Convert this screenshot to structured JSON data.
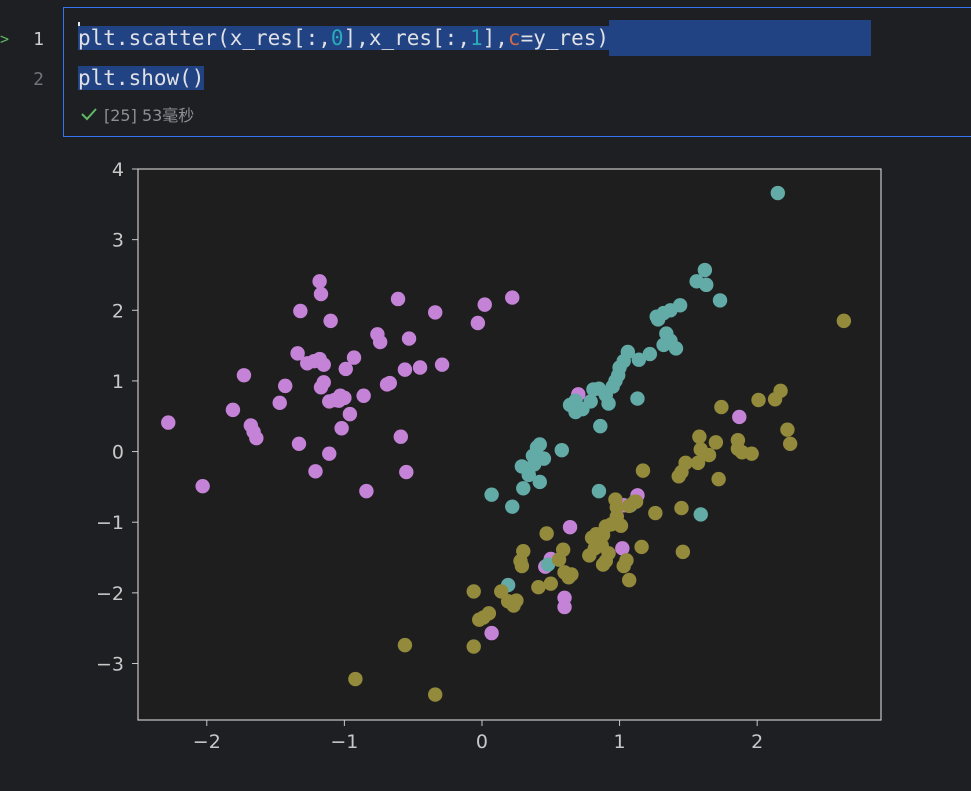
{
  "editor": {
    "line_numbers": [
      "1",
      "2"
    ],
    "line1": {
      "p1": "plt.scatter(x_res[:,",
      "n1": "0",
      "p2": "],x_res[:,",
      "n2": "1",
      "p3": "],",
      "kw": "c",
      "p4": "=y_res)"
    },
    "line2": "plt.show()",
    "status": {
      "count": "[25]",
      "duration": "53毫秒"
    }
  },
  "colors": {
    "purple": "#c583d8",
    "teal": "#62aba7",
    "olive": "#948a3c",
    "axis": "#c8c8c8",
    "plot_bg": "#1e1e1e"
  },
  "chart_data": {
    "type": "scatter",
    "xlim": [
      -2.5,
      2.9
    ],
    "ylim": [
      -3.8,
      4.0
    ],
    "xticks": [
      "−2",
      "−1",
      "0",
      "1",
      "2"
    ],
    "yticks": [
      "−3",
      "−2",
      "−1",
      "0",
      "1",
      "2",
      "3",
      "4"
    ],
    "xtick_values": [
      -2,
      -1,
      0,
      1,
      2
    ],
    "ytick_values": [
      -3,
      -2,
      -1,
      0,
      1,
      2,
      3,
      4
    ],
    "grid": false,
    "series": [
      {
        "color": "#c583d8",
        "points": [
          [
            -2.28,
            0.41
          ],
          [
            -2.03,
            -0.49
          ],
          [
            -1.81,
            0.59
          ],
          [
            -1.73,
            1.08
          ],
          [
            -1.68,
            0.37
          ],
          [
            -1.66,
            0.28
          ],
          [
            -1.64,
            0.19
          ],
          [
            -1.47,
            0.69
          ],
          [
            -1.43,
            0.93
          ],
          [
            -1.34,
            1.39
          ],
          [
            -1.33,
            0.11
          ],
          [
            -1.32,
            1.99
          ],
          [
            -1.27,
            1.25
          ],
          [
            -1.22,
            1.28
          ],
          [
            -1.21,
            -0.28
          ],
          [
            -1.18,
            2.41
          ],
          [
            -1.17,
            2.23
          ],
          [
            -1.18,
            1.31
          ],
          [
            -1.17,
            0.91
          ],
          [
            -1.15,
            0.98
          ],
          [
            -1.15,
            1.23
          ],
          [
            -1.11,
            0.71
          ],
          [
            -1.11,
            -0.03
          ],
          [
            -1.1,
            1.85
          ],
          [
            -1.07,
            0.73
          ],
          [
            -1.04,
            0.72
          ],
          [
            -1.03,
            0.79
          ],
          [
            -1.02,
            0.33
          ],
          [
            -1.0,
            0.76
          ],
          [
            -0.99,
            1.17
          ],
          [
            -0.96,
            0.53
          ],
          [
            -0.93,
            1.33
          ],
          [
            -0.86,
            0.79
          ],
          [
            -0.84,
            -0.56
          ],
          [
            -0.76,
            1.66
          ],
          [
            -0.74,
            1.55
          ],
          [
            -0.69,
            0.95
          ],
          [
            -0.67,
            0.97
          ],
          [
            -0.61,
            2.16
          ],
          [
            -0.59,
            0.21
          ],
          [
            -0.56,
            1.16
          ],
          [
            -0.55,
            -0.29
          ],
          [
            -0.53,
            1.6
          ],
          [
            -0.45,
            1.19
          ],
          [
            -0.34,
            1.97
          ],
          [
            -0.29,
            1.23
          ],
          [
            -0.03,
            1.82
          ],
          [
            0.02,
            2.08
          ],
          [
            0.22,
            2.18
          ],
          [
            0.7,
            0.81
          ],
          [
            1.03,
            -0.76
          ],
          [
            1.13,
            -0.62
          ],
          [
            1.02,
            -1.37
          ],
          [
            1.87,
            0.49
          ],
          [
            0.64,
            -1.07
          ],
          [
            0.5,
            -1.52
          ],
          [
            0.46,
            -1.63
          ],
          [
            0.6,
            -2.07
          ],
          [
            0.6,
            -2.2
          ],
          [
            0.07,
            -2.57
          ]
        ]
      },
      {
        "color": "#62aba7",
        "points": [
          [
            2.15,
            3.66
          ],
          [
            1.62,
            2.57
          ],
          [
            1.63,
            2.36
          ],
          [
            1.73,
            2.14
          ],
          [
            1.56,
            2.41
          ],
          [
            1.44,
            2.07
          ],
          [
            1.37,
            2.0
          ],
          [
            1.32,
            1.96
          ],
          [
            1.28,
            1.87
          ],
          [
            1.27,
            1.91
          ],
          [
            1.34,
            1.67
          ],
          [
            1.32,
            1.51
          ],
          [
            1.37,
            1.57
          ],
          [
            1.41,
            1.46
          ],
          [
            1.22,
            1.38
          ],
          [
            1.14,
            1.3
          ],
          [
            1.06,
            1.41
          ],
          [
            1.03,
            1.28
          ],
          [
            1.0,
            1.19
          ],
          [
            0.99,
            1.08
          ],
          [
            0.97,
            1.0
          ],
          [
            0.95,
            0.92
          ],
          [
            0.9,
            0.8
          ],
          [
            0.85,
            0.89
          ],
          [
            0.81,
            0.88
          ],
          [
            0.79,
            0.71
          ],
          [
            0.73,
            0.6
          ],
          [
            0.68,
            0.56
          ],
          [
            0.64,
            0.66
          ],
          [
            0.68,
            0.72
          ],
          [
            0.86,
            0.36
          ],
          [
            0.92,
            0.68
          ],
          [
            1.13,
            0.75
          ],
          [
            0.58,
            0.02
          ],
          [
            0.42,
            0.1
          ],
          [
            0.4,
            0.06
          ],
          [
            0.37,
            -0.06
          ],
          [
            0.45,
            -0.1
          ],
          [
            0.38,
            -0.18
          ],
          [
            0.29,
            -0.21
          ],
          [
            0.34,
            -0.33
          ],
          [
            0.42,
            -0.43
          ],
          [
            0.3,
            -0.52
          ],
          [
            0.07,
            -0.61
          ],
          [
            0.22,
            -0.78
          ],
          [
            0.85,
            -0.56
          ],
          [
            1.08,
            -0.76
          ],
          [
            1.59,
            -0.89
          ],
          [
            0.48,
            -1.6
          ],
          [
            0.19,
            -1.89
          ]
        ]
      },
      {
        "color": "#948a3c",
        "points": [
          [
            2.63,
            1.85
          ],
          [
            2.17,
            0.86
          ],
          [
            2.13,
            0.74
          ],
          [
            2.22,
            0.31
          ],
          [
            2.24,
            0.11
          ],
          [
            2.01,
            0.73
          ],
          [
            1.86,
            0.04
          ],
          [
            1.86,
            0.16
          ],
          [
            1.89,
            -0.01
          ],
          [
            1.96,
            -0.03
          ],
          [
            1.74,
            0.63
          ],
          [
            1.7,
            0.13
          ],
          [
            1.65,
            -0.05
          ],
          [
            1.58,
            0.21
          ],
          [
            1.59,
            0.03
          ],
          [
            1.57,
            -0.16
          ],
          [
            1.48,
            -0.16
          ],
          [
            1.45,
            -0.29
          ],
          [
            1.43,
            -0.35
          ],
          [
            1.72,
            -0.39
          ],
          [
            1.45,
            -0.8
          ],
          [
            1.46,
            -1.42
          ],
          [
            1.17,
            -0.27
          ],
          [
            1.12,
            -0.71
          ],
          [
            1.11,
            -0.71
          ],
          [
            1.07,
            -0.77
          ],
          [
            0.97,
            -0.68
          ],
          [
            0.98,
            -0.79
          ],
          [
            0.98,
            -0.92
          ],
          [
            0.94,
            -1.03
          ],
          [
            0.9,
            -1.06
          ],
          [
            0.88,
            -1.18
          ],
          [
            0.87,
            -1.33
          ],
          [
            0.83,
            -1.17
          ],
          [
            0.82,
            -1.37
          ],
          [
            0.8,
            -1.22
          ],
          [
            0.78,
            -1.47
          ],
          [
            0.92,
            -1.44
          ],
          [
            0.9,
            -1.55
          ],
          [
            0.88,
            -1.6
          ],
          [
            1.01,
            -1.05
          ],
          [
            1.05,
            -1.54
          ],
          [
            1.03,
            -1.62
          ],
          [
            1.07,
            -1.82
          ],
          [
            1.16,
            -1.35
          ],
          [
            1.26,
            -0.87
          ],
          [
            0.47,
            -1.16
          ],
          [
            0.59,
            -1.39
          ],
          [
            0.56,
            -1.53
          ],
          [
            0.6,
            -1.71
          ],
          [
            0.63,
            -1.78
          ],
          [
            0.65,
            -1.74
          ],
          [
            0.5,
            -1.87
          ],
          [
            0.41,
            -1.92
          ],
          [
            0.3,
            -1.41
          ],
          [
            0.28,
            -1.55
          ],
          [
            0.29,
            -1.62
          ],
          [
            0.25,
            -2.11
          ],
          [
            0.19,
            -2.12
          ],
          [
            0.14,
            -1.98
          ],
          [
            0.05,
            -2.29
          ],
          [
            0.01,
            -2.35
          ],
          [
            -0.02,
            -2.38
          ],
          [
            -0.06,
            -1.98
          ],
          [
            -0.06,
            -2.76
          ],
          [
            -0.56,
            -2.74
          ],
          [
            -0.92,
            -3.22
          ],
          [
            -0.34,
            -3.44
          ],
          [
            0.23,
            -2.18
          ]
        ]
      }
    ]
  }
}
